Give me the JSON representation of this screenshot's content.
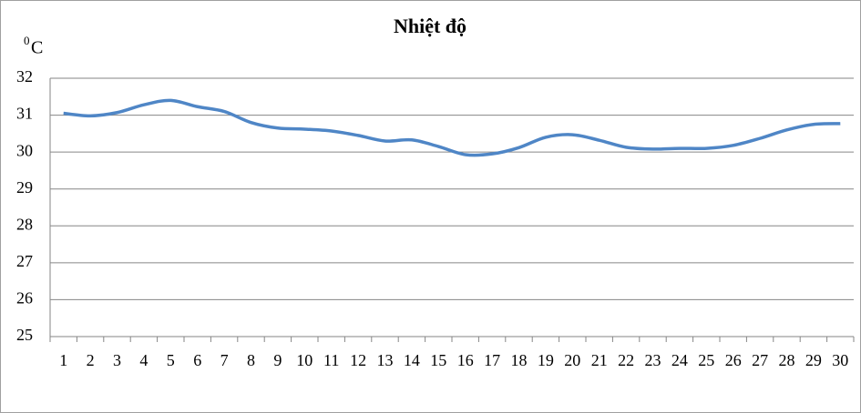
{
  "chart_data": {
    "type": "line",
    "title": "Nhiệt độ",
    "ylabel": {
      "sup": "0",
      "text": "C"
    },
    "categories": [
      "1",
      "2",
      "3",
      "4",
      "5",
      "6",
      "7",
      "8",
      "9",
      "10",
      "11",
      "12",
      "13",
      "14",
      "15",
      "16",
      "17",
      "18",
      "19",
      "20",
      "21",
      "22",
      "23",
      "24",
      "25",
      "26",
      "27",
      "28",
      "29",
      "30"
    ],
    "series": [
      {
        "name": "Nhiệt độ",
        "color": "#4f86c6",
        "values": [
          31.05,
          30.98,
          31.07,
          31.28,
          31.4,
          31.23,
          31.1,
          30.8,
          30.65,
          30.62,
          30.57,
          30.45,
          30.3,
          30.33,
          30.15,
          29.93,
          29.95,
          30.12,
          30.4,
          30.47,
          30.32,
          30.13,
          30.08,
          30.1,
          30.1,
          30.18,
          30.37,
          30.6,
          30.75,
          30.77
        ]
      }
    ],
    "ylim": [
      25,
      32
    ],
    "yticks": [
      25,
      26,
      27,
      28,
      29,
      30,
      31,
      32
    ],
    "grid": true
  }
}
